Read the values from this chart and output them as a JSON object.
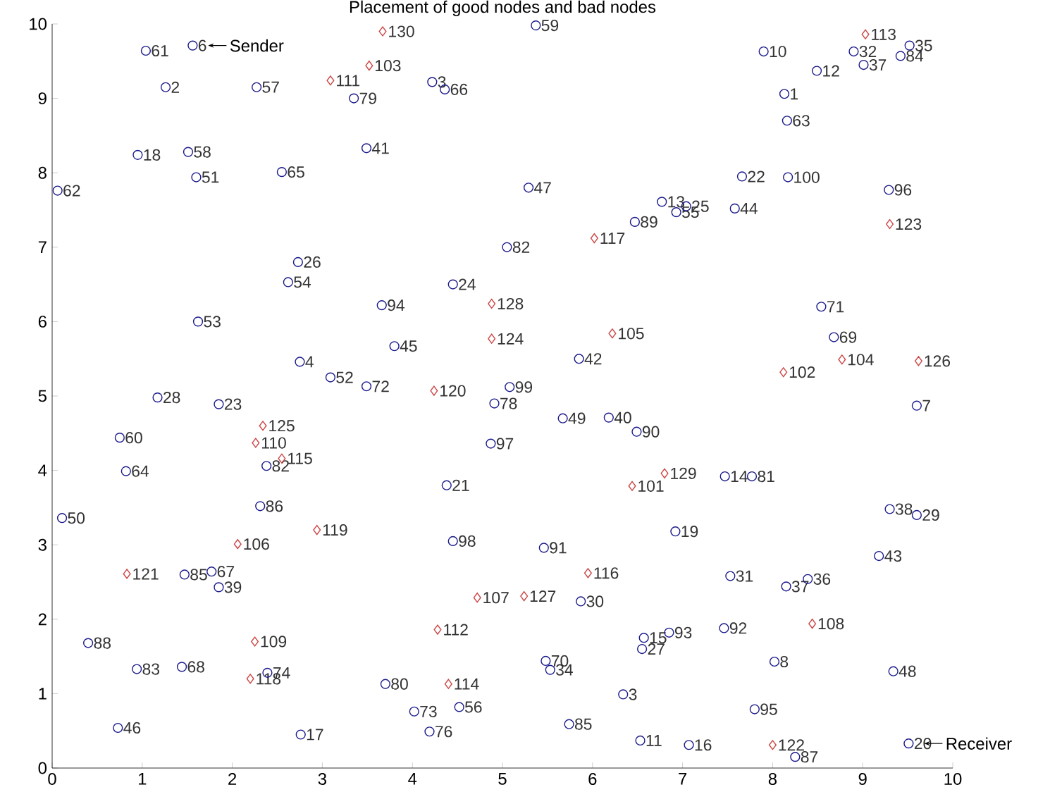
{
  "chart_data": {
    "type": "scatter",
    "title": "Placement of good nodes and bad nodes",
    "xlim": [
      0,
      10
    ],
    "ylim": [
      0,
      10
    ],
    "xticks": [
      0,
      1,
      2,
      3,
      4,
      5,
      6,
      7,
      8,
      9,
      10
    ],
    "yticks": [
      0,
      1,
      2,
      3,
      4,
      5,
      6,
      7,
      8,
      9,
      10
    ],
    "series": [
      {
        "type": "scatter",
        "marker": "circle",
        "color": "#1a1a8c",
        "x": [
          1.04,
          1.56,
          1.26,
          2.27,
          0.95,
          1.51,
          1.6,
          2.55,
          0.06,
          2.73,
          2.62,
          1.62,
          2.75,
          3.09,
          3.35,
          4.22,
          4.36,
          5.37,
          3.49,
          5.29,
          5.05,
          6.47,
          4.45,
          3.66,
          3.8,
          5.85,
          3.49,
          5.08,
          7.9,
          8.49,
          8.9,
          9.01,
          9.42,
          9.52,
          8.13,
          8.16,
          7.66,
          8.17,
          9.29,
          7.58,
          6.77,
          6.93,
          7.04,
          8.54,
          8.68,
          1.17,
          1.85,
          2.38,
          0.75,
          0.82,
          0.11,
          2.31,
          1.47,
          1.77,
          1.85,
          0.4,
          0.94,
          1.44,
          2.39,
          0.73,
          2.76,
          4.91,
          5.67,
          6.18,
          6.49,
          4.87,
          4.38,
          4.45,
          5.46,
          5.87,
          5.48,
          5.53,
          6.57,
          6.55,
          6.85,
          3.7,
          4.02,
          4.52,
          4.19,
          5.74,
          6.34,
          6.53,
          7.07,
          9.6,
          7.47,
          7.77,
          9.3,
          9.6,
          6.92,
          9.18,
          7.53,
          8.15,
          8.39,
          7.46,
          8.02,
          9.34,
          7.8,
          8.25,
          9.51
        ],
        "values": [
          9.64,
          9.71,
          9.15,
          9.15,
          8.24,
          8.28,
          7.94,
          8.01,
          7.76,
          6.8,
          6.53,
          6.0,
          5.46,
          5.25,
          9.0,
          9.22,
          9.12,
          9.98,
          8.33,
          7.8,
          7.0,
          7.34,
          6.5,
          6.22,
          5.67,
          5.5,
          5.13,
          5.12,
          9.63,
          9.37,
          9.63,
          9.45,
          9.57,
          9.71,
          9.06,
          8.7,
          7.95,
          7.94,
          7.77,
          7.52,
          7.61,
          7.47,
          7.55,
          6.2,
          5.79,
          4.98,
          4.89,
          4.06,
          4.44,
          3.99,
          3.36,
          3.52,
          2.6,
          2.64,
          2.43,
          1.68,
          1.33,
          1.36,
          1.28,
          0.54,
          0.45,
          4.9,
          4.7,
          4.71,
          4.52,
          4.36,
          3.8,
          3.05,
          2.96,
          2.24,
          1.44,
          1.32,
          1.75,
          1.6,
          1.82,
          1.13,
          0.76,
          0.82,
          0.49,
          0.59,
          0.99,
          0.37,
          0.31,
          4.87,
          3.92,
          3.92,
          3.48,
          3.4,
          3.18,
          2.85,
          2.58,
          2.44,
          2.54,
          1.88,
          1.43,
          1.3,
          0.79,
          0.15,
          0.33
        ]
      },
      {
        "type": "scatter",
        "marker": "diamond",
        "color": "#cc4444",
        "x": [
          3.09,
          3.67,
          3.52,
          6.02,
          4.88,
          4.88,
          6.22,
          4.24,
          9.03,
          9.3,
          8.77,
          8.12,
          9.62,
          2.34,
          2.26,
          2.55,
          2.06,
          2.94,
          0.83,
          2.25,
          2.2,
          6.44,
          6.8,
          5.95,
          4.72,
          5.24,
          4.28,
          4.4,
          8.44,
          8.0
        ],
        "values": [
          9.24,
          9.9,
          9.44,
          7.12,
          6.24,
          5.77,
          5.84,
          5.07,
          9.86,
          7.31,
          5.49,
          5.32,
          5.47,
          4.6,
          4.37,
          4.16,
          3.01,
          3.2,
          2.61,
          1.7,
          1.2,
          3.79,
          3.96,
          2.62,
          2.29,
          2.31,
          1.86,
          1.13,
          1.94,
          0.31
        ]
      }
    ],
    "annotations": [
      {
        "text": "61",
        "x": 1.04,
        "y": 9.64
      },
      {
        "text": "6",
        "x": 1.56,
        "y": 9.71
      },
      {
        "text": "2",
        "x": 1.26,
        "y": 9.15
      },
      {
        "text": "57",
        "x": 2.27,
        "y": 9.15
      },
      {
        "text": "18",
        "x": 0.95,
        "y": 8.24
      },
      {
        "text": "58",
        "x": 1.51,
        "y": 8.28
      },
      {
        "text": "51",
        "x": 1.6,
        "y": 7.94
      },
      {
        "text": "65",
        "x": 2.55,
        "y": 8.01
      },
      {
        "text": "62",
        "x": 0.06,
        "y": 7.76
      },
      {
        "text": "26",
        "x": 2.73,
        "y": 6.8
      },
      {
        "text": "54",
        "x": 2.62,
        "y": 6.53
      },
      {
        "text": "53",
        "x": 1.62,
        "y": 6.0
      },
      {
        "text": "4",
        "x": 2.75,
        "y": 5.46
      },
      {
        "text": "52",
        "x": 3.09,
        "y": 5.25
      },
      {
        "text": "79",
        "x": 3.35,
        "y": 9.0
      },
      {
        "text": "3",
        "x": 4.22,
        "y": 9.22
      },
      {
        "text": "66",
        "x": 4.36,
        "y": 9.12
      },
      {
        "text": "59",
        "x": 5.37,
        "y": 9.98
      },
      {
        "text": "41",
        "x": 3.49,
        "y": 8.33
      },
      {
        "text": "47",
        "x": 5.29,
        "y": 7.8
      },
      {
        "text": "82",
        "x": 5.05,
        "y": 7.0
      },
      {
        "text": "89",
        "x": 6.47,
        "y": 7.34
      },
      {
        "text": "24",
        "x": 4.45,
        "y": 6.5
      },
      {
        "text": "94",
        "x": 3.66,
        "y": 6.22
      },
      {
        "text": "45",
        "x": 3.8,
        "y": 5.67
      },
      {
        "text": "42",
        "x": 5.85,
        "y": 5.5
      },
      {
        "text": "72",
        "x": 3.49,
        "y": 5.13
      },
      {
        "text": "99",
        "x": 5.08,
        "y": 5.12
      },
      {
        "text": "10",
        "x": 7.9,
        "y": 9.63
      },
      {
        "text": "12",
        "x": 8.49,
        "y": 9.37
      },
      {
        "text": "32",
        "x": 8.9,
        "y": 9.63
      },
      {
        "text": "37",
        "x": 9.01,
        "y": 9.45
      },
      {
        "text": "84",
        "x": 9.42,
        "y": 9.57
      },
      {
        "text": "35",
        "x": 9.52,
        "y": 9.71
      },
      {
        "text": "1",
        "x": 8.13,
        "y": 9.06
      },
      {
        "text": "63",
        "x": 8.16,
        "y": 8.7
      },
      {
        "text": "22",
        "x": 7.66,
        "y": 7.95
      },
      {
        "text": "100",
        "x": 8.17,
        "y": 7.94
      },
      {
        "text": "96",
        "x": 9.29,
        "y": 7.77
      },
      {
        "text": "44",
        "x": 7.58,
        "y": 7.52
      },
      {
        "text": "13",
        "x": 6.77,
        "y": 7.61
      },
      {
        "text": "55",
        "x": 6.93,
        "y": 7.47
      },
      {
        "text": "25",
        "x": 7.04,
        "y": 7.55
      },
      {
        "text": "71",
        "x": 8.54,
        "y": 6.2
      },
      {
        "text": "69",
        "x": 8.68,
        "y": 5.79
      },
      {
        "text": "28",
        "x": 1.17,
        "y": 4.98
      },
      {
        "text": "23",
        "x": 1.85,
        "y": 4.89
      },
      {
        "text": "82",
        "x": 2.38,
        "y": 4.06
      },
      {
        "text": "60",
        "x": 0.75,
        "y": 4.44
      },
      {
        "text": "64",
        "x": 0.82,
        "y": 3.99
      },
      {
        "text": "50",
        "x": 0.11,
        "y": 3.36
      },
      {
        "text": "86",
        "x": 2.31,
        "y": 3.52
      },
      {
        "text": "85",
        "x": 1.47,
        "y": 2.6
      },
      {
        "text": "67",
        "x": 1.77,
        "y": 2.64
      },
      {
        "text": "39",
        "x": 1.85,
        "y": 2.43
      },
      {
        "text": "88",
        "x": 0.4,
        "y": 1.68
      },
      {
        "text": "83",
        "x": 0.94,
        "y": 1.33
      },
      {
        "text": "68",
        "x": 1.44,
        "y": 1.36
      },
      {
        "text": "74",
        "x": 2.39,
        "y": 1.28
      },
      {
        "text": "46",
        "x": 0.73,
        "y": 0.54
      },
      {
        "text": "17",
        "x": 2.76,
        "y": 0.45
      },
      {
        "text": "78",
        "x": 4.91,
        "y": 4.9
      },
      {
        "text": "49",
        "x": 5.67,
        "y": 4.7
      },
      {
        "text": "40",
        "x": 6.18,
        "y": 4.71
      },
      {
        "text": "90",
        "x": 6.49,
        "y": 4.52
      },
      {
        "text": "97",
        "x": 4.87,
        "y": 4.36
      },
      {
        "text": "21",
        "x": 4.38,
        "y": 3.8
      },
      {
        "text": "98",
        "x": 4.45,
        "y": 3.05
      },
      {
        "text": "91",
        "x": 5.46,
        "y": 2.96
      },
      {
        "text": "30",
        "x": 5.87,
        "y": 2.24
      },
      {
        "text": "70",
        "x": 5.48,
        "y": 1.44
      },
      {
        "text": "34",
        "x": 5.53,
        "y": 1.32
      },
      {
        "text": "15",
        "x": 6.57,
        "y": 1.75
      },
      {
        "text": "27",
        "x": 6.55,
        "y": 1.6
      },
      {
        "text": "93",
        "x": 6.85,
        "y": 1.82
      },
      {
        "text": "80",
        "x": 3.7,
        "y": 1.13
      },
      {
        "text": "73",
        "x": 4.02,
        "y": 0.76
      },
      {
        "text": "56",
        "x": 4.52,
        "y": 0.82
      },
      {
        "text": "76",
        "x": 4.19,
        "y": 0.49
      },
      {
        "text": "85",
        "x": 5.74,
        "y": 0.59
      },
      {
        "text": "3",
        "x": 6.34,
        "y": 0.99
      },
      {
        "text": "11",
        "x": 6.53,
        "y": 0.37
      },
      {
        "text": "16",
        "x": 7.07,
        "y": 0.31
      },
      {
        "text": "7",
        "x": 9.6,
        "y": 4.87
      },
      {
        "text": "14",
        "x": 7.47,
        "y": 3.92
      },
      {
        "text": "81",
        "x": 7.77,
        "y": 3.92
      },
      {
        "text": "38",
        "x": 9.3,
        "y": 3.48
      },
      {
        "text": "29",
        "x": 9.6,
        "y": 3.4
      },
      {
        "text": "19",
        "x": 6.92,
        "y": 3.18
      },
      {
        "text": "43",
        "x": 9.18,
        "y": 2.85
      },
      {
        "text": "31",
        "x": 7.53,
        "y": 2.58
      },
      {
        "text": "37",
        "x": 8.15,
        "y": 2.44
      },
      {
        "text": "36",
        "x": 8.39,
        "y": 2.54
      },
      {
        "text": "92",
        "x": 7.46,
        "y": 1.88
      },
      {
        "text": "8",
        "x": 8.02,
        "y": 1.43
      },
      {
        "text": "48",
        "x": 9.34,
        "y": 1.3
      },
      {
        "text": "95",
        "x": 7.8,
        "y": 0.79
      },
      {
        "text": "87",
        "x": 8.25,
        "y": 0.15
      },
      {
        "text": "20",
        "x": 9.51,
        "y": 0.33
      },
      {
        "text": "111",
        "x": 3.09,
        "y": 9.24
      },
      {
        "text": "130",
        "x": 3.67,
        "y": 9.9
      },
      {
        "text": "103",
        "x": 3.52,
        "y": 9.44
      },
      {
        "text": "117",
        "x": 6.02,
        "y": 7.12
      },
      {
        "text": "128",
        "x": 4.88,
        "y": 6.24
      },
      {
        "text": "124",
        "x": 4.88,
        "y": 5.77
      },
      {
        "text": "105",
        "x": 6.22,
        "y": 5.84
      },
      {
        "text": "120",
        "x": 4.24,
        "y": 5.07
      },
      {
        "text": "113",
        "x": 9.03,
        "y": 9.86
      },
      {
        "text": "123",
        "x": 9.3,
        "y": 7.31
      },
      {
        "text": "104",
        "x": 8.77,
        "y": 5.49
      },
      {
        "text": "102",
        "x": 8.12,
        "y": 5.32
      },
      {
        "text": "126",
        "x": 9.62,
        "y": 5.47
      },
      {
        "text": "125",
        "x": 2.34,
        "y": 4.6
      },
      {
        "text": "110",
        "x": 2.26,
        "y": 4.37
      },
      {
        "text": "115",
        "x": 2.55,
        "y": 4.16
      },
      {
        "text": "106",
        "x": 2.06,
        "y": 3.01
      },
      {
        "text": "119",
        "x": 2.94,
        "y": 3.2
      },
      {
        "text": "121",
        "x": 0.83,
        "y": 2.61
      },
      {
        "text": "109",
        "x": 2.25,
        "y": 1.7
      },
      {
        "text": "118",
        "x": 2.2,
        "y": 1.2
      },
      {
        "text": "101",
        "x": 6.44,
        "y": 3.79
      },
      {
        "text": "129",
        "x": 6.8,
        "y": 3.96
      },
      {
        "text": "116",
        "x": 5.95,
        "y": 2.62
      },
      {
        "text": "107",
        "x": 4.72,
        "y": 2.29
      },
      {
        "text": "127",
        "x": 5.24,
        "y": 2.31
      },
      {
        "text": "112",
        "x": 4.28,
        "y": 1.86
      },
      {
        "text": "114",
        "x": 4.4,
        "y": 1.13
      },
      {
        "text": "108",
        "x": 8.44,
        "y": 1.94
      },
      {
        "text": "122",
        "x": 8.0,
        "y": 0.31
      },
      {
        "text": "Sender",
        "x": 1.56,
        "y": 9.71
      },
      {
        "text": "Receiver",
        "x": 9.51,
        "y": 0.33
      }
    ]
  }
}
